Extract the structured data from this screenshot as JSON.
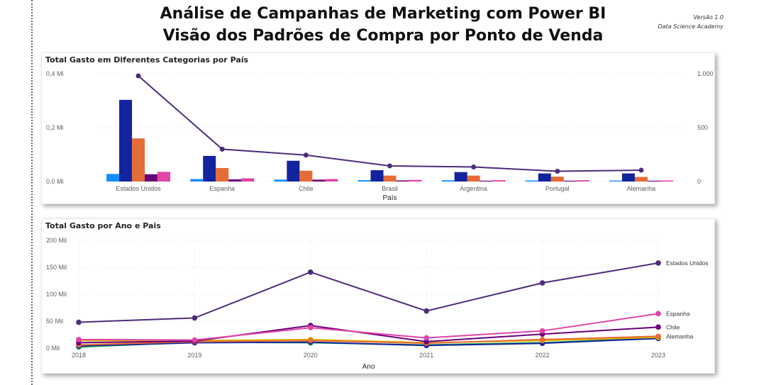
{
  "header": {
    "title_line1": "Análise de Campanhas de Marketing com Power BI",
    "title_line2": "Visão dos Padrões de Compra por Ponto de Venda",
    "version": "Versão 1.0",
    "org": "Data Science Academy"
  },
  "chart_data": [
    {
      "type": "bar",
      "title": "Total Gasto em Diferentes Categorias por País",
      "xlabel": "País",
      "ylabel": "",
      "categories": [
        "Estados Unidos",
        "Espanha",
        "Chile",
        "Brasil",
        "Argentina",
        "Portugal",
        "Alemanha"
      ],
      "ylim": [
        0,
        400000
      ],
      "y_ticks": [
        0,
        200000,
        400000
      ],
      "y_tick_labels": [
        "0,0 Mi",
        "0,2 Mi",
        "0,4 Mi"
      ],
      "y2lim": [
        0,
        1000
      ],
      "y2_ticks": [
        0,
        500,
        1000
      ],
      "y2_tick_labels": [
        "0",
        "500",
        "1.000"
      ],
      "grid": true,
      "series": [
        {
          "values": [
            28000,
            9000,
            7000,
            5000,
            4500,
            4000,
            3500
          ],
          "color": "#118dff"
        },
        {
          "values": [
            303000,
            95000,
            77000,
            42000,
            35000,
            30000,
            30000
          ],
          "color": "#12239e"
        },
        {
          "values": [
            160000,
            50000,
            40000,
            22000,
            22000,
            18000,
            17000
          ],
          "color": "#e66c37"
        },
        {
          "values": [
            27000,
            8000,
            7000,
            4000,
            3000,
            3000,
            3000
          ],
          "color": "#6b007b"
        },
        {
          "values": [
            36000,
            12000,
            9000,
            6000,
            5000,
            5000,
            4000
          ],
          "color": "#e044a7"
        }
      ],
      "line_series": {
        "axis": "secondary",
        "values": [
          980,
          300,
          245,
          145,
          135,
          95,
          105
        ],
        "color": "#4d2c7b"
      }
    },
    {
      "type": "line",
      "title": "Total Gasto por Ano e Pais",
      "xlabel": "Ano",
      "ylabel": "",
      "x": [
        "2018",
        "2019",
        "2020",
        "2021",
        "2022",
        "2023"
      ],
      "ylim": [
        0,
        200000
      ],
      "y_ticks": [
        0,
        50000,
        100000,
        150000,
        200000
      ],
      "y_tick_labels": [
        "0 Mil",
        "50 Mil",
        "100 Mil",
        "150 Mil",
        "200 Mil"
      ],
      "grid": true,
      "series": [
        {
          "name": "Estados Unidos",
          "values": [
            48000,
            56000,
            141000,
            69000,
            121000,
            158000
          ],
          "color": "#4d2c7b"
        },
        {
          "name": "Espanha",
          "values": [
            16000,
            15000,
            38000,
            19000,
            32000,
            64000
          ],
          "color": "#e044a7"
        },
        {
          "name": "Chile",
          "values": [
            10000,
            13000,
            42000,
            12000,
            26000,
            39000
          ],
          "color": "#6b007b"
        },
        {
          "name": "Alemanha",
          "values": [
            6000,
            12000,
            14000,
            9000,
            16000,
            22000
          ],
          "color": "#e66c37"
        },
        {
          "values": [
            14000,
            14000,
            16000,
            10000,
            14000,
            20000
          ],
          "color": "#d9b300"
        },
        {
          "values": [
            4000,
            10000,
            11000,
            5000,
            9000,
            18000
          ],
          "color": "#12239e"
        },
        {
          "values": [
            2000,
            11000,
            10000,
            6000,
            10000,
            19000
          ],
          "color": "#1aab40"
        }
      ]
    }
  ]
}
